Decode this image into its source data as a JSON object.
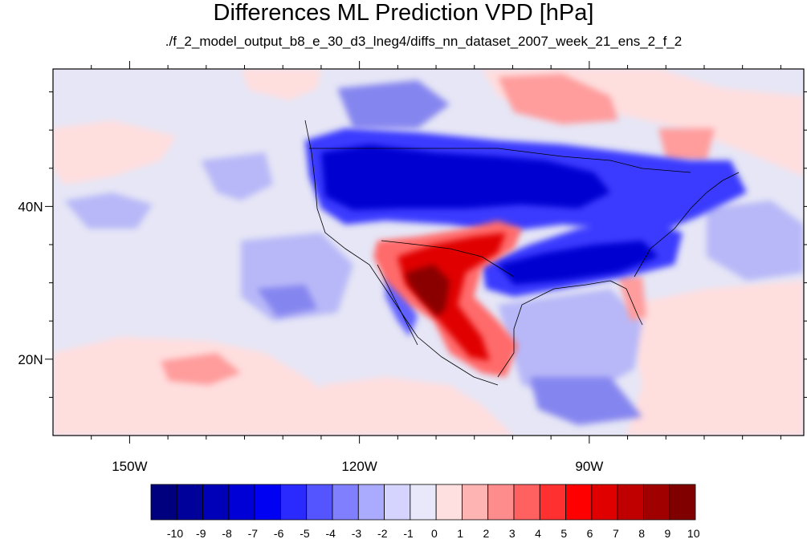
{
  "title": "Differences ML Prediction VPD [hPa]",
  "subtitle": "./f_2_model_output_b8_e_30_d3_lneg4/diffs_nn_dataset_2007_week_21_ens_2_f_2",
  "lat_ticks": [
    {
      "value": 40,
      "label": "40N"
    },
    {
      "value": 20,
      "label": "20N"
    }
  ],
  "lon_ticks": [
    {
      "value": -150,
      "label": "150W"
    },
    {
      "value": -120,
      "label": "120W"
    },
    {
      "value": -90,
      "label": "90W"
    }
  ],
  "extent": {
    "lon_min": -160,
    "lon_max": -62,
    "lat_min": 10,
    "lat_max": 58
  },
  "colorbar": {
    "labels": [
      "-10",
      "-9",
      "-8",
      "-7",
      "-6",
      "-5",
      "-4",
      "-3",
      "-2",
      "-1",
      "0",
      "1",
      "2",
      "3",
      "4",
      "5",
      "6",
      "7",
      "8",
      "9",
      "10"
    ],
    "colors": [
      "#00007e",
      "#00009a",
      "#0000b8",
      "#0000d6",
      "#0000f2",
      "#2a2aff",
      "#5555ff",
      "#8080ff",
      "#aaaaff",
      "#d4d4ff",
      "#e8e8fa",
      "#ffe0e0",
      "#ffb4b4",
      "#ff8c8c",
      "#ff6060",
      "#ff3030",
      "#ff0000",
      "#e00000",
      "#c00000",
      "#a00000",
      "#800000"
    ]
  },
  "background_color": "#e6e6f6"
}
